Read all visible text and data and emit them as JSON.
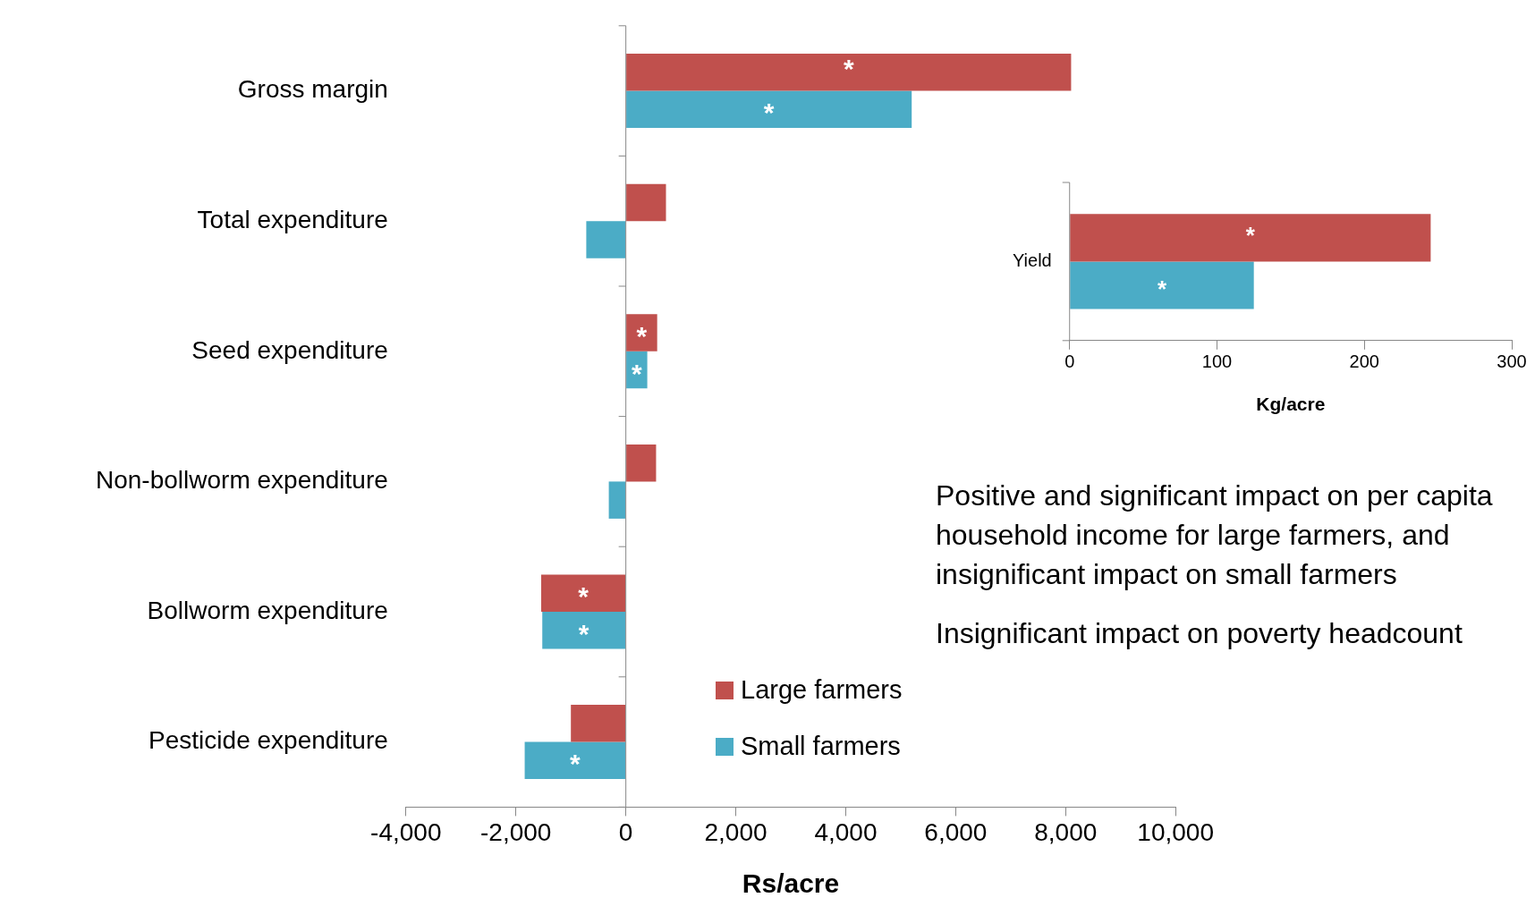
{
  "chart_data": [
    {
      "type": "bar",
      "orientation": "horizontal",
      "categories": [
        "Gross margin",
        "Total expenditure",
        "Seed expenditure",
        "Non-bollworm expenditure",
        "Bollworm expenditure",
        "Pesticide expenditure"
      ],
      "series": [
        {
          "name": "Large farmers",
          "color": "#c0504d",
          "values": [
            8100,
            730,
            570,
            550,
            -1540,
            -1000
          ],
          "value_labels": [
            "*",
            null,
            "*",
            null,
            "*",
            null
          ]
        },
        {
          "name": "Small farmers",
          "color": "#4bacc6",
          "values": [
            5200,
            -720,
            390,
            -310,
            -1520,
            -1840
          ],
          "value_labels": [
            "*",
            null,
            "*",
            null,
            "*",
            "*"
          ]
        }
      ],
      "xlim": [
        -4000,
        10000
      ],
      "xticks": [
        {
          "value": -4000,
          "label": "-4,000"
        },
        {
          "value": -2000,
          "label": "-2,000"
        },
        0,
        {
          "value": 2000,
          "label": "2,000"
        },
        {
          "value": 4000,
          "label": "4,000"
        },
        {
          "value": 6000,
          "label": "6,000"
        },
        {
          "value": 8000,
          "label": "8,000"
        },
        {
          "value": 10000,
          "label": "10,000"
        }
      ],
      "xlabel": "Rs/acre",
      "legend": "bottom",
      "annotations": [
        "Positive  and significant impact on per capita household income for large farmers, and insignificant impact on small farmers",
        "Insignificant  impact on poverty headcount"
      ]
    },
    {
      "type": "bar",
      "orientation": "horizontal",
      "categories": [
        "Yield"
      ],
      "series": [
        {
          "color": "#c0504d",
          "values": [
            245
          ],
          "value_labels": [
            "*"
          ]
        },
        {
          "color": "#4bacc6",
          "values": [
            125
          ],
          "value_labels": [
            "*"
          ]
        }
      ],
      "xlim": [
        0,
        300
      ],
      "xticks": [
        0,
        100,
        200,
        300
      ],
      "xlabel": "Kg/acre"
    }
  ]
}
